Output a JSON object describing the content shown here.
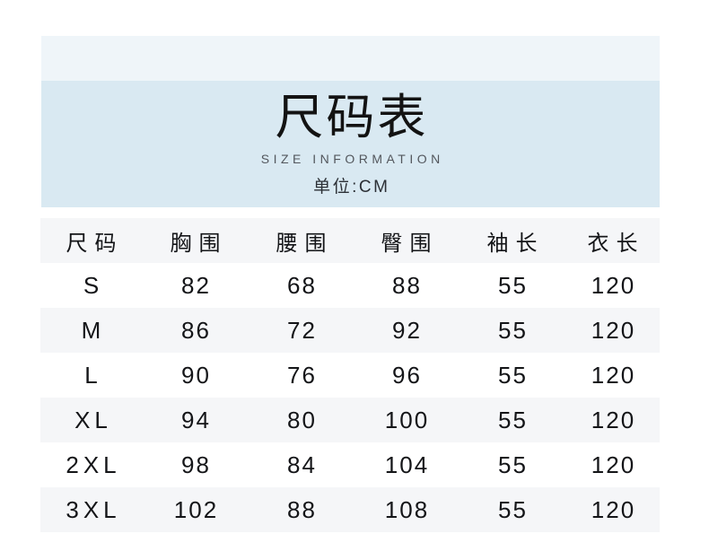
{
  "colors": {
    "top_band": "#eff5f9",
    "main_band": "#d9e9f2",
    "table_stripe": "#f5f6f8",
    "title_text": "#131313",
    "subtitle_text": "#53575d"
  },
  "header": {
    "title": "尺码表",
    "subtitle": "SIZE INFORMATION",
    "unit": "单位:CM"
  },
  "table": {
    "columns": [
      "尺码",
      "胸围",
      "腰围",
      "臀围",
      "袖长",
      "衣长"
    ],
    "rows": [
      [
        "S",
        "82",
        "68",
        "88",
        "55",
        "120"
      ],
      [
        "M",
        "86",
        "72",
        "92",
        "55",
        "120"
      ],
      [
        "L",
        "90",
        "76",
        "96",
        "55",
        "120"
      ],
      [
        "XL",
        "94",
        "80",
        "100",
        "55",
        "120"
      ],
      [
        "2XL",
        "98",
        "84",
        "104",
        "55",
        "120"
      ],
      [
        "3XL",
        "102",
        "88",
        "108",
        "55",
        "120"
      ]
    ]
  },
  "chart_data": {
    "type": "table",
    "title": "尺码表",
    "subtitle": "SIZE INFORMATION",
    "unit": "CM",
    "columns": [
      "尺码",
      "胸围",
      "腰围",
      "臀围",
      "袖长",
      "衣长"
    ],
    "rows": [
      [
        "S",
        82,
        68,
        88,
        55,
        120
      ],
      [
        "M",
        86,
        72,
        92,
        55,
        120
      ],
      [
        "L",
        90,
        76,
        96,
        55,
        120
      ],
      [
        "XL",
        94,
        80,
        100,
        55,
        120
      ],
      [
        "2XL",
        98,
        84,
        104,
        55,
        120
      ],
      [
        "3XL",
        102,
        88,
        108,
        55,
        120
      ]
    ]
  }
}
